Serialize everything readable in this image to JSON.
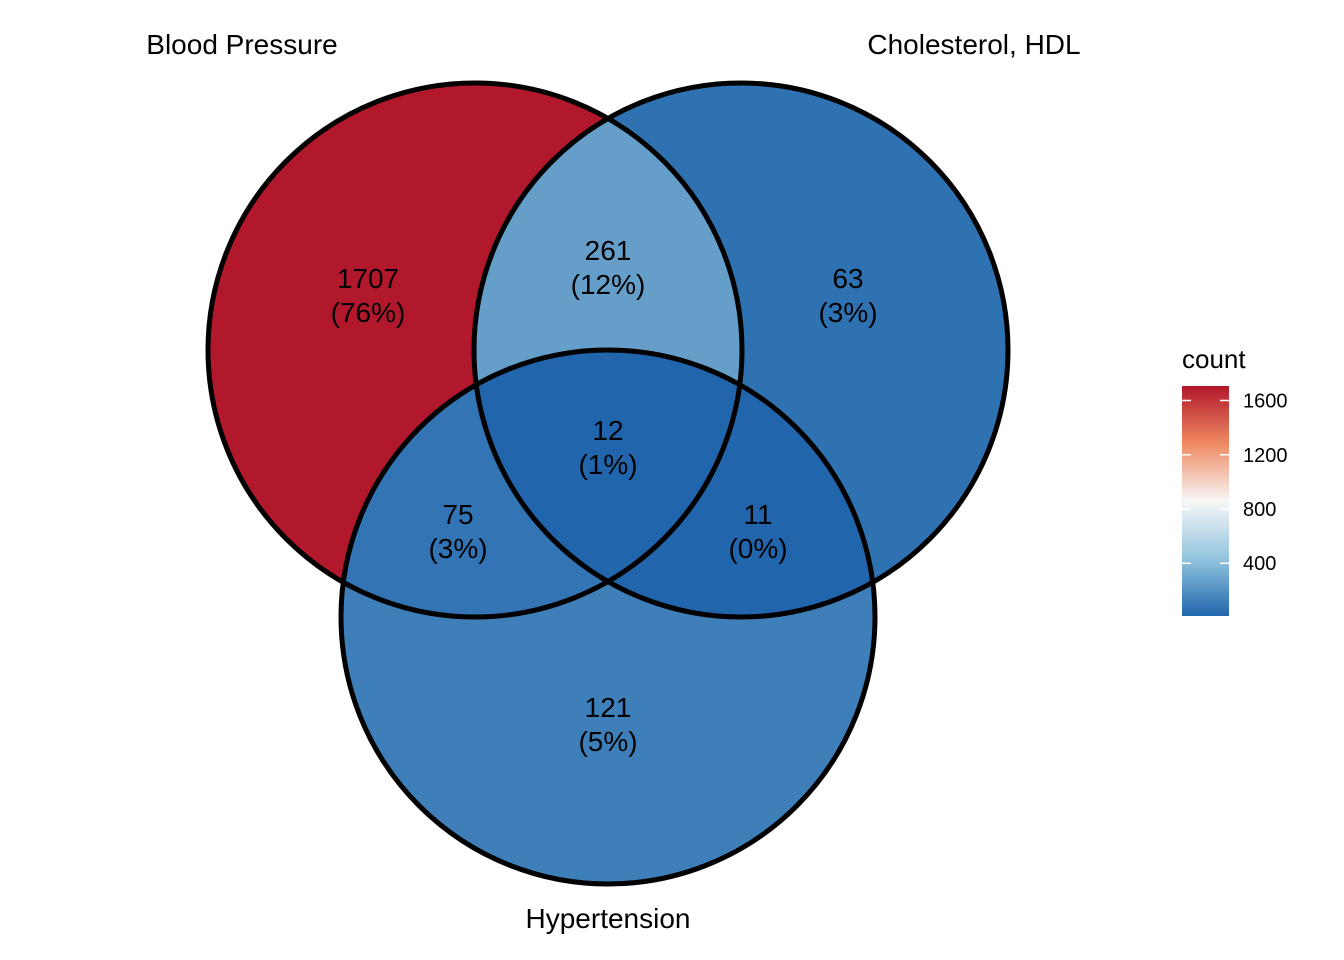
{
  "sets": [
    {
      "key": "bp",
      "label": "Blood Pressure"
    },
    {
      "key": "hdl",
      "label": "Cholesterol, HDL"
    },
    {
      "key": "ht",
      "label": "Hypertension"
    }
  ],
  "regions": [
    {
      "key": "bp_only",
      "count": "1707",
      "pct": "(76%)",
      "value": 1707
    },
    {
      "key": "bp_hdl",
      "count": "261",
      "pct": "(12%)",
      "value": 261
    },
    {
      "key": "hdl_only",
      "count": "63",
      "pct": "(3%)",
      "value": 63
    },
    {
      "key": "all",
      "count": "12",
      "pct": "(1%)",
      "value": 12
    },
    {
      "key": "bp_ht",
      "count": "75",
      "pct": "(3%)",
      "value": 75
    },
    {
      "key": "hdl_ht",
      "count": "11",
      "pct": "(0%)",
      "value": 11
    },
    {
      "key": "ht_only",
      "count": "121",
      "pct": "(5%)",
      "value": 121
    }
  ],
  "legend": {
    "title": "count",
    "ticks": [
      "1600",
      "1200",
      "800",
      "400"
    ],
    "tick_values": [
      1600,
      1200,
      800,
      400
    ],
    "min": 11,
    "max": 1707
  },
  "colors": {
    "high": "#b2182b",
    "mid_high": "#ef8a62",
    "mid": "#f7f7f7",
    "mid_low": "#92c5de",
    "low": "#2166ac",
    "outline": "#000000"
  }
}
